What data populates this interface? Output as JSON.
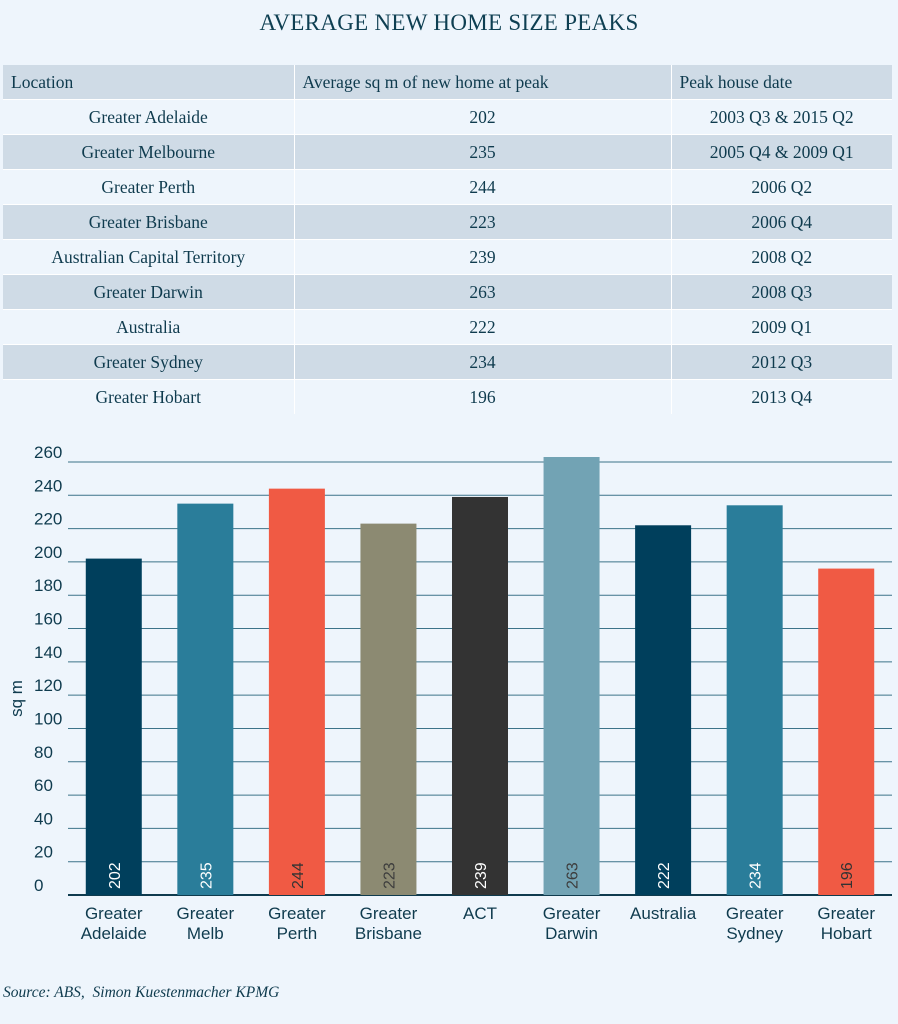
{
  "title": "AVERAGE NEW HOME SIZE PEAKS",
  "table": {
    "headers": [
      "Location",
      "Average sq m of new home at peak",
      "Peak house date"
    ],
    "rows": [
      [
        "Greater Adelaide",
        "202",
        "2003 Q3 & 2015 Q2"
      ],
      [
        "Greater Melbourne",
        "235",
        "2005 Q4 & 2009 Q1"
      ],
      [
        "Greater Perth",
        "244",
        "2006 Q2"
      ],
      [
        "Greater Brisbane",
        "223",
        "2006 Q4"
      ],
      [
        "Australian Capital Territory",
        "239",
        "2008 Q2"
      ],
      [
        "Greater Darwin",
        "263",
        "2008 Q3"
      ],
      [
        "Australia",
        "222",
        "2009 Q1"
      ],
      [
        "Greater Sydney",
        "234",
        "2012 Q3"
      ],
      [
        "Greater Hobart",
        "196",
        "2013 Q4"
      ]
    ]
  },
  "chart_data": {
    "type": "bar",
    "categories": [
      [
        "Greater",
        "Adelaide"
      ],
      [
        "Greater",
        "Melb"
      ],
      [
        "Greater",
        "Perth"
      ],
      [
        "Greater",
        "Brisbane"
      ],
      [
        "ACT"
      ],
      [
        "Greater",
        "Darwin"
      ],
      [
        "Australia"
      ],
      [
        "Greater",
        "Sydney"
      ],
      [
        "Greater",
        "Hobart"
      ]
    ],
    "values": [
      202,
      235,
      244,
      223,
      239,
      263,
      222,
      234,
      196
    ],
    "data_labels": [
      "202",
      "235",
      "244",
      "223",
      "239",
      "263",
      "222",
      "234",
      "196"
    ],
    "colors": [
      "#003f5c",
      "#2a7d9a",
      "#f05a44",
      "#8c8a72",
      "#333333",
      "#72a3b4",
      "#003f5c",
      "#2a7d9a",
      "#f05a44"
    ],
    "label_colors": [
      "#ffffff",
      "#ffffff",
      "#333333",
      "#3d3d3d",
      "#ffffff",
      "#3d3d3d",
      "#ffffff",
      "#ffffff",
      "#333333"
    ],
    "ylabel": "sq m",
    "ylim": [
      0,
      260
    ],
    "yticks": [
      0,
      20,
      40,
      60,
      80,
      100,
      120,
      140,
      160,
      180,
      200,
      220,
      240,
      260
    ],
    "grid": true,
    "gridline_color": "#3c7389"
  },
  "source": "Source: ABS,  Simon Kuestenmacher KPMG"
}
